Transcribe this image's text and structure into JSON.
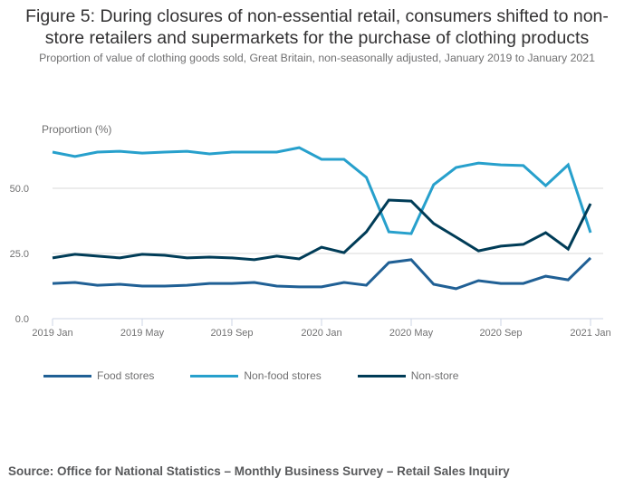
{
  "title": "Figure 5: During closures of non-essential retail, consumers shifted to non-store retailers and supermarkets for the purchase of clothing products",
  "title_line1": "Figure 5: During closures of non-essential retail, consumers shifted to non-",
  "title_line2": "store retailers and supermarkets for the purchase of clothing products",
  "subtitle": "Proportion of value of clothing goods sold, Great Britain, non-seasonally adjusted, January 2019 to January 2021",
  "source": "Source: Office for National Statistics – Monthly Business Survey – Retail Sales Inquiry",
  "chart_data": {
    "type": "line",
    "title": "Figure 5: During closures of non-essential retail, consumers shifted to non-store retailers and supermarkets for the purchase of clothing products",
    "subtitle": "Proportion of value of clothing goods sold, Great Britain, non-seasonally adjusted, January 2019 to January 2021",
    "xlabel": "",
    "ylabel": "Proportion (%)",
    "ylim": [
      0,
      70
    ],
    "yticks": [
      0,
      25,
      50
    ],
    "ytick_labels": [
      "0.0",
      "25.0",
      "50.0"
    ],
    "grid": true,
    "legend": "bottom-left",
    "x": [
      "2019 Jan",
      "2019 Feb",
      "2019 Mar",
      "2019 Apr",
      "2019 May",
      "2019 Jun",
      "2019 Jul",
      "2019 Aug",
      "2019 Sep",
      "2019 Oct",
      "2019 Nov",
      "2019 Dec",
      "2020 Jan",
      "2020 Feb",
      "2020 Mar",
      "2020 Apr",
      "2020 May",
      "2020 Jun",
      "2020 Jul",
      "2020 Aug",
      "2020 Sep",
      "2020 Oct",
      "2020 Nov",
      "2020 Dec",
      "2021 Jan"
    ],
    "xticks": [
      {
        "index": 0,
        "label": "2019 Jan"
      },
      {
        "index": 4,
        "label": "2019 May"
      },
      {
        "index": 8,
        "label": "2019 Sep"
      },
      {
        "index": 12,
        "label": "2020 Jan"
      },
      {
        "index": 16,
        "label": "2020 May"
      },
      {
        "index": 20,
        "label": "2020 Sep"
      },
      {
        "index": 24,
        "label": "2021 Jan"
      }
    ],
    "series": [
      {
        "name": "Food stores",
        "color": "#206095",
        "values": [
          13.5,
          13.9,
          12.8,
          13.2,
          12.5,
          12.5,
          12.8,
          13.5,
          13.5,
          13.9,
          12.5,
          12.2,
          12.2,
          13.9,
          12.8,
          21.5,
          22.6,
          13.2,
          11.5,
          14.6,
          13.5,
          13.5,
          16.3,
          14.9,
          23.3
        ]
      },
      {
        "name": "Non-food stores",
        "color": "#27a0cc",
        "values": [
          63.9,
          62.2,
          63.9,
          64.2,
          63.5,
          63.9,
          64.2,
          63.2,
          63.9,
          63.9,
          63.9,
          65.6,
          61.1,
          61.1,
          54.2,
          33.3,
          32.6,
          51.4,
          58.0,
          59.7,
          59.0,
          58.7,
          51.0,
          59.0,
          33.0
        ]
      },
      {
        "name": "Non-store",
        "color": "#003c57",
        "values": [
          23.3,
          24.7,
          24.0,
          23.3,
          24.7,
          24.3,
          23.3,
          23.6,
          23.3,
          22.6,
          24.0,
          22.9,
          27.4,
          25.3,
          33.3,
          45.5,
          45.1,
          36.5,
          31.3,
          26.0,
          27.8,
          28.5,
          33.0,
          26.7,
          44.1
        ]
      }
    ]
  },
  "colors": {
    "gridline": "#d9d9d9",
    "axis": "#ccd6e6",
    "text": "#707071",
    "title": "#323132"
  }
}
